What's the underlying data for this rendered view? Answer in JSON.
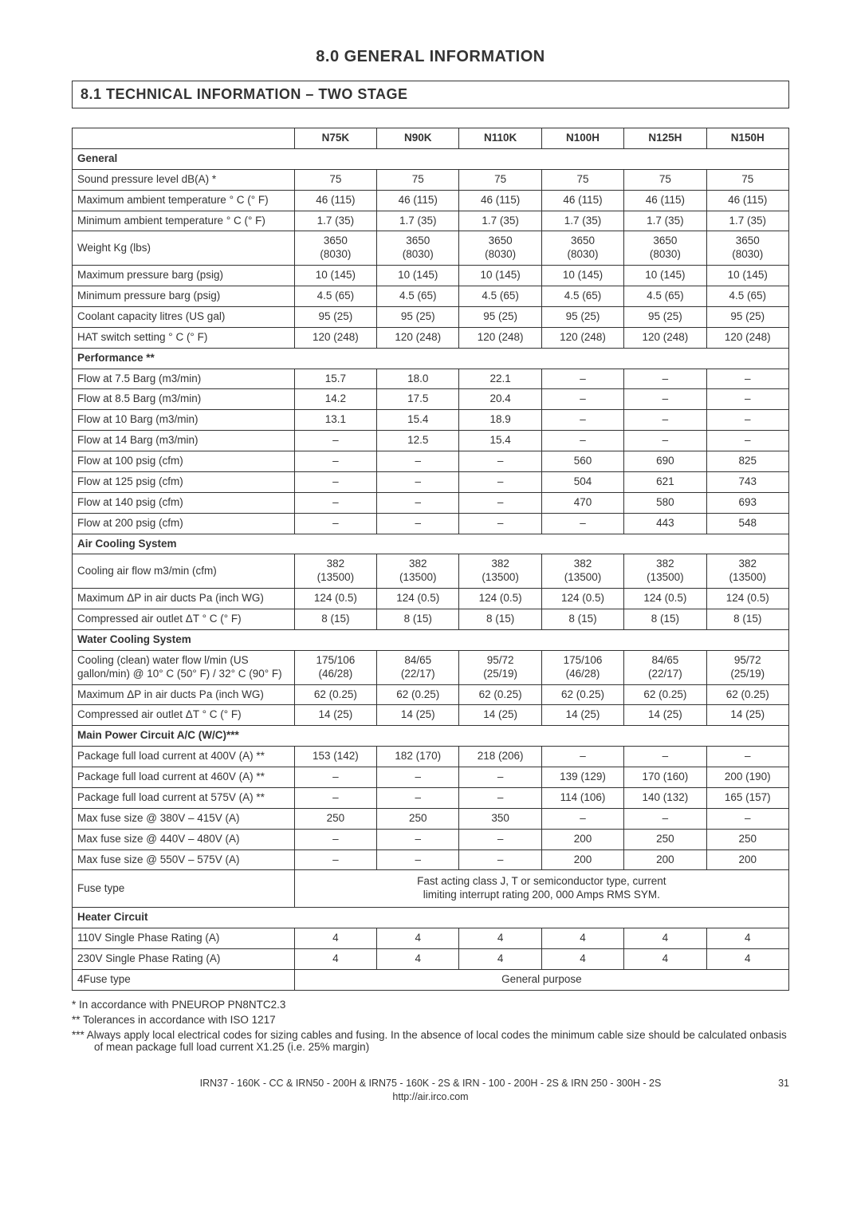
{
  "heading": "8.0 GENERAL INFORMATION",
  "section_title": "8.1 TECHNICAL INFORMATION – TWO STAGE",
  "columns": [
    "N75K",
    "N90K",
    "N110K",
    "N100H",
    "N125H",
    "N150H"
  ],
  "groups": [
    {
      "title": "General",
      "rows": [
        {
          "label": "Sound pressure level dB(A) *",
          "v": [
            "75",
            "75",
            "75",
            "75",
            "75",
            "75"
          ]
        },
        {
          "label": "Maximum ambient temperature ° C (° F)",
          "v": [
            "46 (115)",
            "46 (115)",
            "46 (115)",
            "46 (115)",
            "46 (115)",
            "46 (115)"
          ]
        },
        {
          "label": "Minimum ambient temperature ° C (° F)",
          "v": [
            "1.7 (35)",
            "1.7 (35)",
            "1.7 (35)",
            "1.7 (35)",
            "1.7 (35)",
            "1.7 (35)"
          ]
        },
        {
          "label": "Weight Kg (lbs)",
          "v": [
            "3650 (8030)",
            "3650 (8030)",
            "3650 (8030)",
            "3650 (8030)",
            "3650 (8030)",
            "3650 (8030)"
          ],
          "twoLine": true
        },
        {
          "label": "Maximum pressure barg (psig)",
          "v": [
            "10 (145)",
            "10 (145)",
            "10 (145)",
            "10 (145)",
            "10 (145)",
            "10 (145)"
          ]
        },
        {
          "label": "Minimum pressure barg (psig)",
          "v": [
            "4.5 (65)",
            "4.5 (65)",
            "4.5 (65)",
            "4.5 (65)",
            "4.5 (65)",
            "4.5 (65)"
          ]
        },
        {
          "label": "Coolant capacity litres (US gal)",
          "v": [
            "95 (25)",
            "95 (25)",
            "95 (25)",
            "95 (25)",
            "95 (25)",
            "95 (25)"
          ]
        },
        {
          "label": "HAT switch setting ° C (° F)",
          "v": [
            "120 (248)",
            "120 (248)",
            "120 (248)",
            "120 (248)",
            "120 (248)",
            "120 (248)"
          ]
        }
      ]
    },
    {
      "title": "Performance **",
      "rows": [
        {
          "label": "Flow at 7.5 Barg (m3/min)",
          "v": [
            "15.7",
            "18.0",
            "22.1",
            "–",
            "–",
            "–"
          ]
        },
        {
          "label": "Flow at 8.5 Barg (m3/min)",
          "v": [
            "14.2",
            "17.5",
            "20.4",
            "–",
            "–",
            "–"
          ]
        },
        {
          "label": "Flow at 10 Barg (m3/min)",
          "v": [
            "13.1",
            "15.4",
            "18.9",
            "–",
            "–",
            "–"
          ]
        },
        {
          "label": "Flow at 14 Barg (m3/min)",
          "v": [
            "–",
            "12.5",
            "15.4",
            "–",
            "–",
            "–"
          ]
        },
        {
          "label": "Flow at 100 psig (cfm)",
          "v": [
            "–",
            "–",
            "–",
            "560",
            "690",
            "825"
          ]
        },
        {
          "label": "Flow at 125 psig (cfm)",
          "v": [
            "–",
            "–",
            "–",
            "504",
            "621",
            "743"
          ]
        },
        {
          "label": "Flow at 140 psig (cfm)",
          "v": [
            "–",
            "–",
            "–",
            "470",
            "580",
            "693"
          ]
        },
        {
          "label": "Flow at 200 psig (cfm)",
          "v": [
            "–",
            "–",
            "–",
            "–",
            "443",
            "548"
          ]
        }
      ]
    },
    {
      "title": "Air Cooling System",
      "rows": [
        {
          "label": "Cooling air flow m3/min (cfm)",
          "v": [
            "382 (13500)",
            "382 (13500)",
            "382 (13500)",
            "382 (13500)",
            "382 (13500)",
            "382 (13500)"
          ],
          "twoLine": true
        },
        {
          "label": "Maximum ΔP in air ducts Pa (inch WG)",
          "v": [
            "124 (0.5)",
            "124 (0.5)",
            "124 (0.5)",
            "124 (0.5)",
            "124 (0.5)",
            "124 (0.5)"
          ]
        },
        {
          "label": "Compressed air outlet ΔT ° C (° F)",
          "v": [
            "8 (15)",
            "8 (15)",
            "8 (15)",
            "8 (15)",
            "8 (15)",
            "8 (15)"
          ]
        }
      ]
    },
    {
      "title": "Water Cooling System",
      "rows": [
        {
          "label": "Cooling (clean) water flow l/min (US gallon/min) @  10° C (50° F) / 32° C (90° F)",
          "v": [
            "175/106 (46/28)",
            "84/65 (22/17)",
            "95/72 (25/19)",
            "175/106 (46/28)",
            "84/65 (22/17)",
            "95/72 (25/19)"
          ],
          "twoLine": true
        },
        {
          "label": "Maximum ΔP in air ducts Pa (inch WG)",
          "v": [
            "62 (0.25)",
            "62 (0.25)",
            "62 (0.25)",
            "62 (0.25)",
            "62 (0.25)",
            "62 (0.25)"
          ]
        },
        {
          "label": "Compressed air outlet ΔT ° C (° F)",
          "v": [
            "14 (25)",
            "14 (25)",
            "14 (25)",
            "14 (25)",
            "14 (25)",
            "14 (25)"
          ]
        }
      ]
    },
    {
      "title": "Main Power Circuit A/C (W/C)***",
      "rows": [
        {
          "label": "Package full load current at 400V (A) **",
          "v": [
            "153 (142)",
            "182 (170)",
            "218 (206)",
            "–",
            "–",
            "–"
          ]
        },
        {
          "label": "Package full load current at 460V (A) **",
          "v": [
            "–",
            "–",
            "–",
            "139 (129)",
            "170 (160)",
            "200 (190)"
          ]
        },
        {
          "label": "Package full load current at 575V (A) **",
          "v": [
            "–",
            "–",
            "–",
            "114 (106)",
            "140 (132)",
            "165 (157)"
          ]
        },
        {
          "label": "Max fuse size @ 380V – 415V (A)",
          "v": [
            "250",
            "250",
            "350",
            "–",
            "–",
            "–"
          ]
        },
        {
          "label": "Max fuse size @ 440V – 480V (A)",
          "v": [
            "–",
            "–",
            "–",
            "200",
            "250",
            "250"
          ]
        },
        {
          "label": "Max fuse size @ 550V – 575V (A)",
          "v": [
            "–",
            "–",
            "–",
            "200",
            "200",
            "200"
          ]
        },
        {
          "label": "Fuse type",
          "merged": "Fast acting class J, T or semiconductor type, current limiting interrupt rating 200, 000 Amps RMS SYM.",
          "twoMergedLines": true
        }
      ]
    },
    {
      "title": "Heater Circuit",
      "rows": [
        {
          "label": "110V Single Phase Rating (A)",
          "v": [
            "4",
            "4",
            "4",
            "4",
            "4",
            "4"
          ]
        },
        {
          "label": "230V Single Phase Rating (A)",
          "v": [
            "4",
            "4",
            "4",
            "4",
            "4",
            "4"
          ]
        },
        {
          "label": "4Fuse type",
          "merged": "General purpose"
        }
      ]
    }
  ],
  "footnotes": [
    "* In accordance with PNEUROP PN8NTC2.3",
    "** Tolerances in accordance with ISO 1217",
    "*** Always apply local electrical codes for sizing cables and fusing. In the absence of local codes the minimum cable size should be calculated onbasis of mean package full load current X1.25 (i.e. 25% margin)"
  ],
  "footer_line1": "IRN37 - 160K - CC & IRN50 - 200H & IRN75 - 160K - 2S & IRN - 100 - 200H - 2S & IRN 250 - 300H - 2S",
  "footer_line2": "http://air.irco.com",
  "page_number": "31"
}
